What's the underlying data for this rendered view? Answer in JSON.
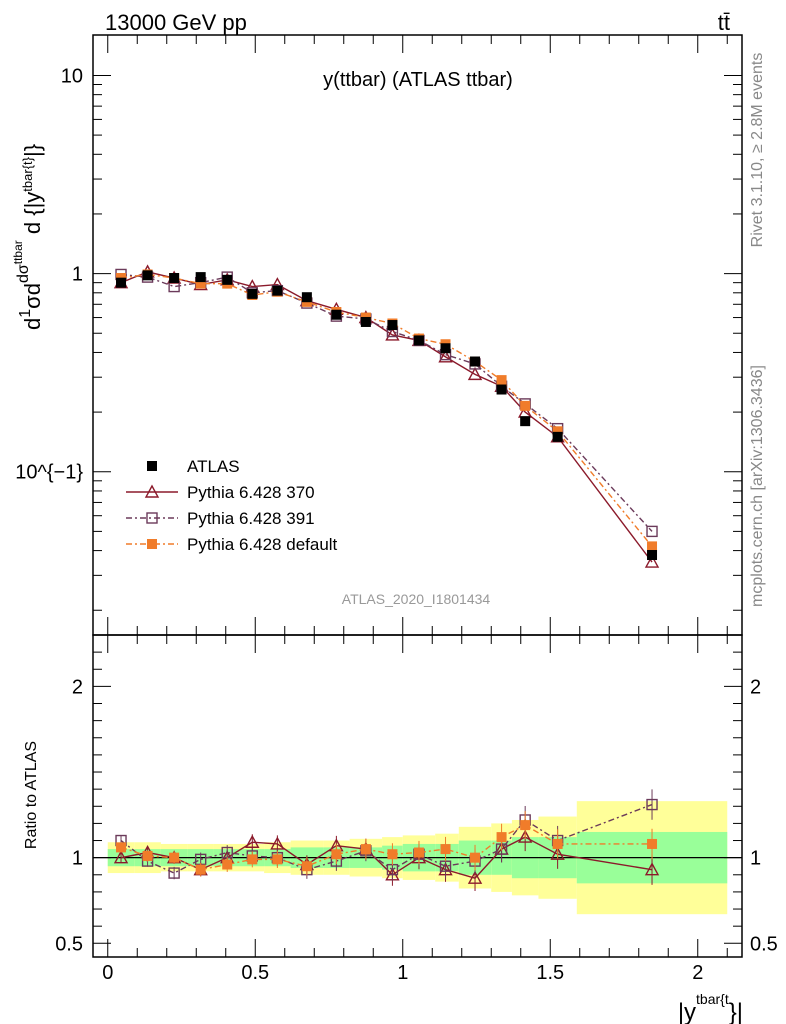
{
  "header": {
    "left": "13000 GeV pp",
    "right": "tt̄"
  },
  "side_labels": {
    "rivet": "Rivet 3.1.10, ≥ 2.8M events",
    "mcplots": "mcplots.cern.ch [arXiv:1306.3436]"
  },
  "plot_title": "y(ttbar) (ATLAS ttbar)",
  "analysis_id": "ATLAS_2020_I1801434",
  "chart_data": [
    {
      "type": "line",
      "title": "y(ttbar) (ATLAS ttbar)",
      "xlabel": "|y^{tbar{t}}|",
      "ylabel": "1/σ dσ^{ttbar}/d{|y^{tbar{t}}|}",
      "yscale": "log",
      "ylim": [
        0.015,
        16
      ],
      "xlim": [
        -0.05,
        2.15
      ],
      "ytick_labels": [
        "10^{−1}",
        "1",
        "10"
      ],
      "xtick_labels": [
        "0",
        "0.5",
        "1",
        "1.5",
        "2"
      ],
      "x": [
        0.045,
        0.135,
        0.225,
        0.315,
        0.405,
        0.49,
        0.575,
        0.675,
        0.775,
        0.875,
        0.965,
        1.055,
        1.145,
        1.245,
        1.335,
        1.415,
        1.525,
        1.845
      ],
      "series": [
        {
          "name": "ATLAS",
          "color": "#000000",
          "marker": "filled-square",
          "values": [
            0.9,
            0.98,
            0.95,
            0.96,
            0.93,
            0.79,
            0.82,
            0.76,
            0.62,
            0.57,
            0.55,
            0.46,
            0.42,
            0.36,
            0.26,
            0.18,
            0.15,
            0.038
          ]
        },
        {
          "name": "Pythia 6.428 370",
          "color": "#8b1a2b",
          "marker": "open-triangle",
          "values": [
            0.9,
            1.02,
            0.95,
            0.88,
            0.93,
            0.86,
            0.88,
            0.73,
            0.66,
            0.6,
            0.49,
            0.46,
            0.38,
            0.31,
            0.27,
            0.2,
            0.15,
            0.035
          ]
        },
        {
          "name": "Pythia 6.428 391",
          "color": "#6b3a5a",
          "marker": "open-square",
          "values": [
            0.99,
            0.96,
            0.86,
            0.9,
            0.96,
            0.8,
            0.82,
            0.71,
            0.61,
            0.59,
            0.51,
            0.46,
            0.39,
            0.35,
            0.27,
            0.22,
            0.165,
            0.05
          ]
        },
        {
          "name": "Pythia 6.428 default",
          "color": "#f07c2a",
          "marker": "filled-square",
          "values": [
            0.95,
            0.99,
            0.95,
            0.89,
            0.89,
            0.78,
            0.81,
            0.72,
            0.64,
            0.6,
            0.56,
            0.47,
            0.44,
            0.36,
            0.29,
            0.215,
            0.16,
            0.042
          ]
        }
      ]
    },
    {
      "type": "line",
      "ylabel": "Ratio to ATLAS",
      "ylim": [
        0.42,
        2.3
      ],
      "ytick_labels": [
        "0.5",
        "1",
        "2"
      ],
      "x": [
        0.045,
        0.135,
        0.225,
        0.315,
        0.405,
        0.49,
        0.575,
        0.675,
        0.775,
        0.875,
        0.965,
        1.055,
        1.145,
        1.245,
        1.335,
        1.415,
        1.525,
        1.845
      ],
      "bin_edges": [
        0,
        0.09,
        0.18,
        0.27,
        0.36,
        0.45,
        0.53,
        0.62,
        0.73,
        0.82,
        0.93,
        1.0,
        1.11,
        1.19,
        1.3,
        1.37,
        1.46,
        1.59,
        2.1
      ],
      "band_inner": [
        0.05,
        0.05,
        0.05,
        0.05,
        0.05,
        0.05,
        0.05,
        0.06,
        0.06,
        0.06,
        0.07,
        0.08,
        0.08,
        0.1,
        0.1,
        0.12,
        0.12,
        0.15
      ],
      "band_outer": [
        0.09,
        0.09,
        0.08,
        0.08,
        0.08,
        0.08,
        0.09,
        0.1,
        0.1,
        0.11,
        0.12,
        0.13,
        0.14,
        0.18,
        0.2,
        0.22,
        0.24,
        0.33
      ],
      "series": [
        {
          "name": "Pythia 6.428 370",
          "values": [
            1.0,
            1.03,
            1.0,
            0.93,
            1.0,
            1.09,
            1.08,
            0.96,
            1.07,
            1.05,
            0.9,
            1.0,
            0.93,
            0.88,
            1.05,
            1.12,
            1.02,
            0.93
          ]
        },
        {
          "name": "Pythia 6.428 391",
          "values": [
            1.1,
            0.98,
            0.91,
            0.99,
            1.03,
            1.01,
            1.0,
            0.93,
            0.98,
            1.04,
            0.93,
            1.02,
            0.95,
            0.98,
            1.05,
            1.22,
            1.1,
            1.31
          ]
        },
        {
          "name": "Pythia 6.428 default",
          "values": [
            1.06,
            1.01,
            1.0,
            0.93,
            0.96,
            0.99,
            0.99,
            0.95,
            1.02,
            1.05,
            1.02,
            1.03,
            1.05,
            1.0,
            1.12,
            1.19,
            1.08,
            1.08
          ]
        }
      ]
    }
  ]
}
